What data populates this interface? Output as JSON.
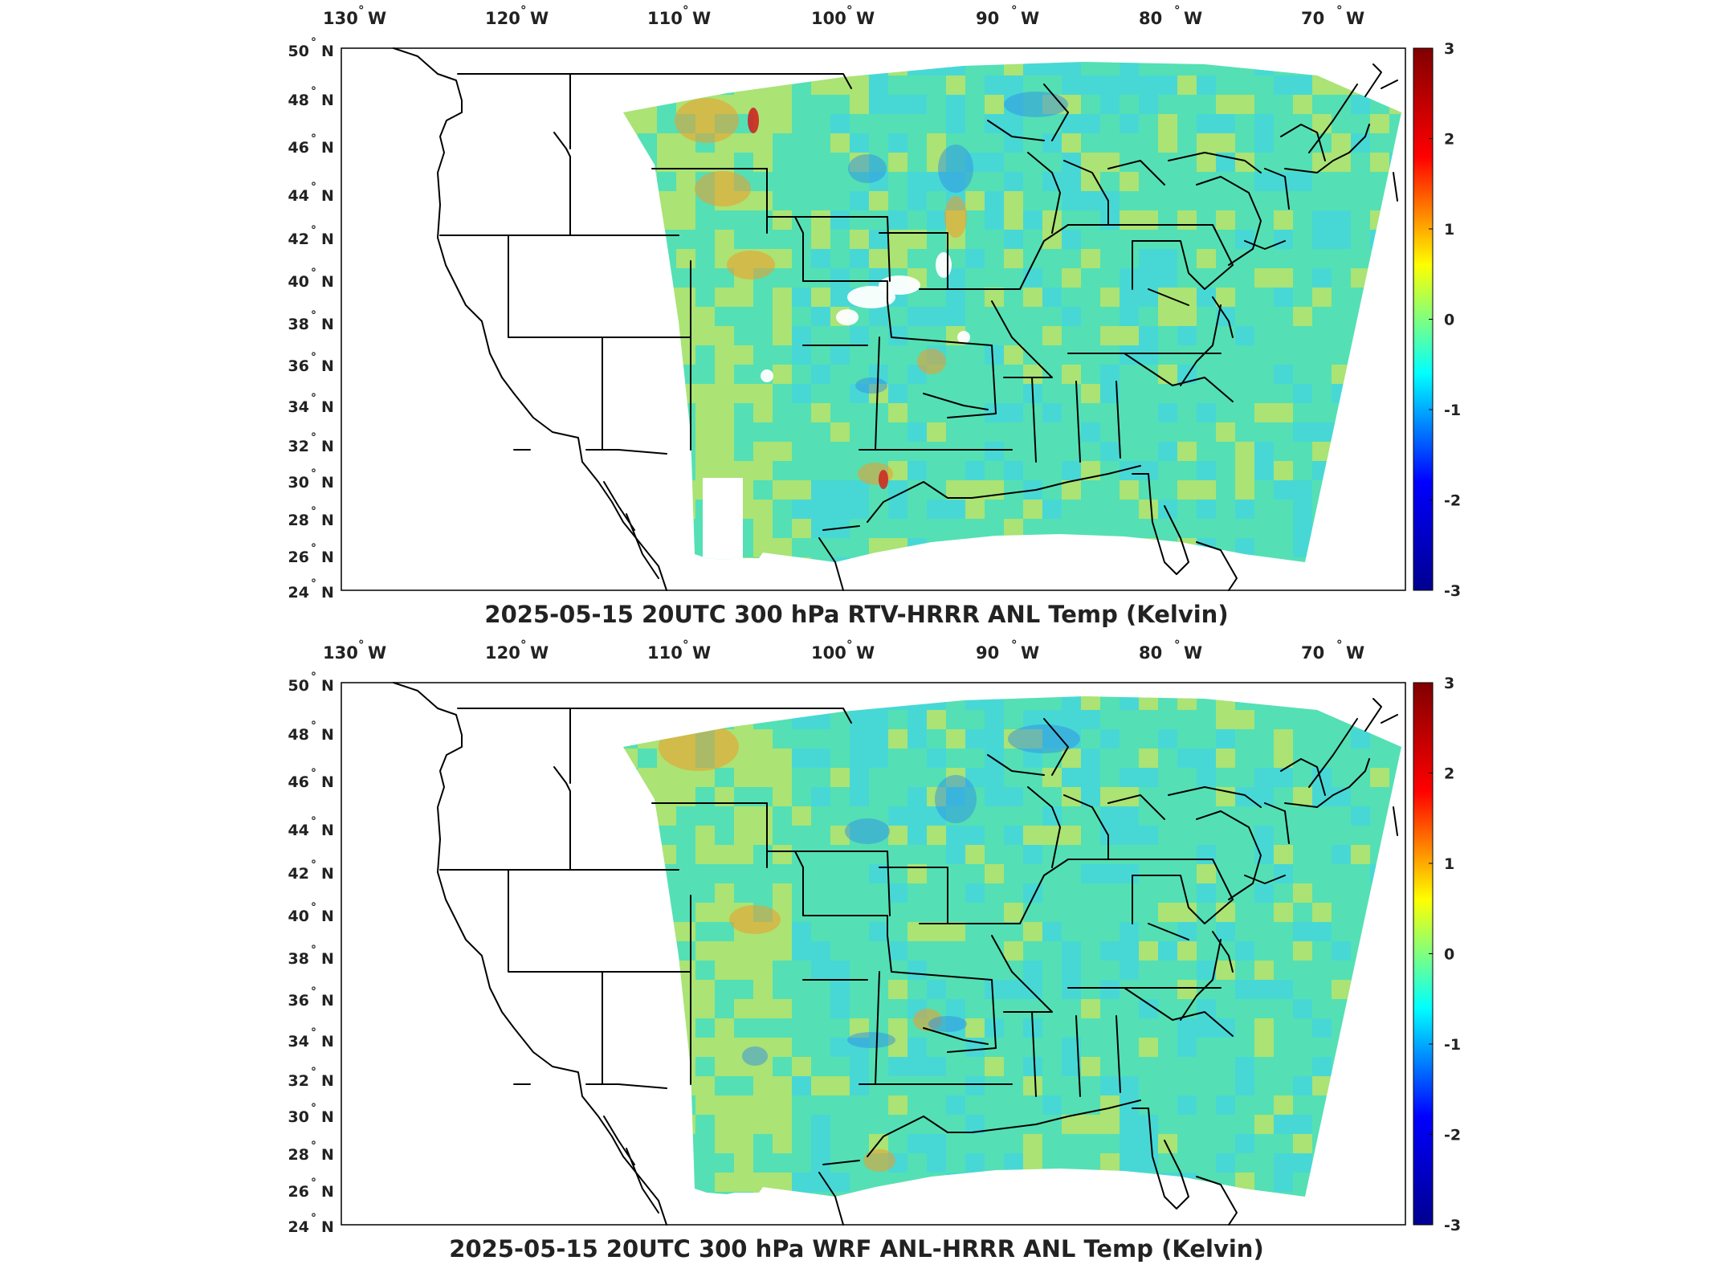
{
  "panels": [
    {
      "title": "2025-05-15 20UTC 300 hPa RTV-HRRR ANL Temp (Kelvin)",
      "variant": "rtv"
    },
    {
      "title": "2025-05-15 20UTC 300 hPa WRF ANL-HRRR ANL Temp (Kelvin)",
      "variant": "wrf"
    }
  ],
  "longitude_labels": [
    "130",
    "120",
    "110",
    "100",
    "90",
    "80",
    "70"
  ],
  "longitude_suffix": "W",
  "latitude_labels": [
    "50",
    "48",
    "46",
    "44",
    "42",
    "40",
    "38",
    "36",
    "34",
    "32",
    "30",
    "28",
    "26",
    "24"
  ],
  "latitude_suffix": "N",
  "degree_symbol": "°",
  "colorbar": {
    "ticks": [
      "3",
      "2",
      "1",
      "0",
      "-1",
      "-2",
      "-3"
    ],
    "colormap": "jet",
    "min": -3,
    "max": 3,
    "colors": [
      "#00008f",
      "#0000ff",
      "#00ffff",
      "#ffff00",
      "#ff0000",
      "#800000"
    ]
  },
  "field_colors": {
    "base": "#54e0b4",
    "cool": "#3cd2f0",
    "warm": "#f2e640",
    "hot": "#f09a28",
    "cold": "#2f8fe6"
  }
}
